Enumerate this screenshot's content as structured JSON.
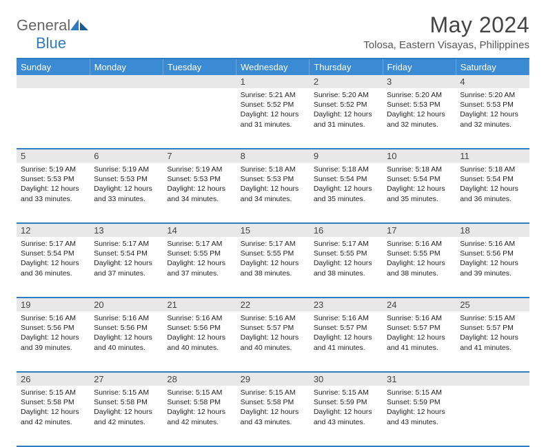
{
  "logo": {
    "text1": "General",
    "text2": "Blue"
  },
  "title": "May 2024",
  "location": "Tolosa, Eastern Visayas, Philippines",
  "weekdays": [
    "Sunday",
    "Monday",
    "Tuesday",
    "Wednesday",
    "Thursday",
    "Friday",
    "Saturday"
  ],
  "colors": {
    "header_bg": "#3b8bd4",
    "border": "#2f7bbf",
    "daynum_bg": "#e8e8e8"
  },
  "weeks": [
    [
      null,
      null,
      null,
      {
        "n": "1",
        "sr": "5:21 AM",
        "ss": "5:52 PM",
        "dl": "12 hours and 31 minutes."
      },
      {
        "n": "2",
        "sr": "5:20 AM",
        "ss": "5:52 PM",
        "dl": "12 hours and 31 minutes."
      },
      {
        "n": "3",
        "sr": "5:20 AM",
        "ss": "5:53 PM",
        "dl": "12 hours and 32 minutes."
      },
      {
        "n": "4",
        "sr": "5:20 AM",
        "ss": "5:53 PM",
        "dl": "12 hours and 32 minutes."
      }
    ],
    [
      {
        "n": "5",
        "sr": "5:19 AM",
        "ss": "5:53 PM",
        "dl": "12 hours and 33 minutes."
      },
      {
        "n": "6",
        "sr": "5:19 AM",
        "ss": "5:53 PM",
        "dl": "12 hours and 33 minutes."
      },
      {
        "n": "7",
        "sr": "5:19 AM",
        "ss": "5:53 PM",
        "dl": "12 hours and 34 minutes."
      },
      {
        "n": "8",
        "sr": "5:18 AM",
        "ss": "5:53 PM",
        "dl": "12 hours and 34 minutes."
      },
      {
        "n": "9",
        "sr": "5:18 AM",
        "ss": "5:54 PM",
        "dl": "12 hours and 35 minutes."
      },
      {
        "n": "10",
        "sr": "5:18 AM",
        "ss": "5:54 PM",
        "dl": "12 hours and 35 minutes."
      },
      {
        "n": "11",
        "sr": "5:18 AM",
        "ss": "5:54 PM",
        "dl": "12 hours and 36 minutes."
      }
    ],
    [
      {
        "n": "12",
        "sr": "5:17 AM",
        "ss": "5:54 PM",
        "dl": "12 hours and 36 minutes."
      },
      {
        "n": "13",
        "sr": "5:17 AM",
        "ss": "5:54 PM",
        "dl": "12 hours and 37 minutes."
      },
      {
        "n": "14",
        "sr": "5:17 AM",
        "ss": "5:55 PM",
        "dl": "12 hours and 37 minutes."
      },
      {
        "n": "15",
        "sr": "5:17 AM",
        "ss": "5:55 PM",
        "dl": "12 hours and 38 minutes."
      },
      {
        "n": "16",
        "sr": "5:17 AM",
        "ss": "5:55 PM",
        "dl": "12 hours and 38 minutes."
      },
      {
        "n": "17",
        "sr": "5:16 AM",
        "ss": "5:55 PM",
        "dl": "12 hours and 38 minutes."
      },
      {
        "n": "18",
        "sr": "5:16 AM",
        "ss": "5:56 PM",
        "dl": "12 hours and 39 minutes."
      }
    ],
    [
      {
        "n": "19",
        "sr": "5:16 AM",
        "ss": "5:56 PM",
        "dl": "12 hours and 39 minutes."
      },
      {
        "n": "20",
        "sr": "5:16 AM",
        "ss": "5:56 PM",
        "dl": "12 hours and 40 minutes."
      },
      {
        "n": "21",
        "sr": "5:16 AM",
        "ss": "5:56 PM",
        "dl": "12 hours and 40 minutes."
      },
      {
        "n": "22",
        "sr": "5:16 AM",
        "ss": "5:57 PM",
        "dl": "12 hours and 40 minutes."
      },
      {
        "n": "23",
        "sr": "5:16 AM",
        "ss": "5:57 PM",
        "dl": "12 hours and 41 minutes."
      },
      {
        "n": "24",
        "sr": "5:16 AM",
        "ss": "5:57 PM",
        "dl": "12 hours and 41 minutes."
      },
      {
        "n": "25",
        "sr": "5:15 AM",
        "ss": "5:57 PM",
        "dl": "12 hours and 41 minutes."
      }
    ],
    [
      {
        "n": "26",
        "sr": "5:15 AM",
        "ss": "5:58 PM",
        "dl": "12 hours and 42 minutes."
      },
      {
        "n": "27",
        "sr": "5:15 AM",
        "ss": "5:58 PM",
        "dl": "12 hours and 42 minutes."
      },
      {
        "n": "28",
        "sr": "5:15 AM",
        "ss": "5:58 PM",
        "dl": "12 hours and 42 minutes."
      },
      {
        "n": "29",
        "sr": "5:15 AM",
        "ss": "5:58 PM",
        "dl": "12 hours and 43 minutes."
      },
      {
        "n": "30",
        "sr": "5:15 AM",
        "ss": "5:59 PM",
        "dl": "12 hours and 43 minutes."
      },
      {
        "n": "31",
        "sr": "5:15 AM",
        "ss": "5:59 PM",
        "dl": "12 hours and 43 minutes."
      },
      null
    ]
  ],
  "labels": {
    "sunrise": "Sunrise:",
    "sunset": "Sunset:",
    "daylight": "Daylight:"
  }
}
